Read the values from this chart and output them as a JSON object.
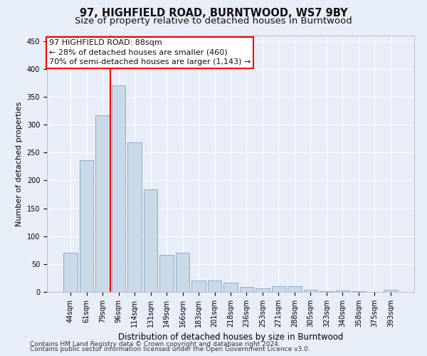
{
  "title": "97, HIGHFIELD ROAD, BURNTWOOD, WS7 9BY",
  "subtitle": "Size of property relative to detached houses in Burntwood",
  "xlabel": "Distribution of detached houses by size in Burntwood",
  "ylabel": "Number of detached properties",
  "categories": [
    "44sqm",
    "61sqm",
    "79sqm",
    "96sqm",
    "114sqm",
    "131sqm",
    "149sqm",
    "166sqm",
    "183sqm",
    "201sqm",
    "218sqm",
    "236sqm",
    "253sqm",
    "271sqm",
    "288sqm",
    "305sqm",
    "323sqm",
    "340sqm",
    "358sqm",
    "375sqm",
    "393sqm"
  ],
  "values": [
    70,
    237,
    317,
    370,
    268,
    184,
    67,
    70,
    21,
    21,
    17,
    9,
    7,
    10,
    10,
    4,
    1,
    2,
    1,
    0,
    4
  ],
  "bar_color": "#c9d9e8",
  "bar_edge_color": "#7ba7c7",
  "background_color": "#e8eef8",
  "grid_color": "#ffffff",
  "vline_x": 2.5,
  "vline_color": "red",
  "annotation_line1": "97 HIGHFIELD ROAD: 88sqm",
  "annotation_line2": "← 28% of detached houses are smaller (460)",
  "annotation_line3": "70% of semi-detached houses are larger (1,143) →",
  "annotation_box_color": "white",
  "annotation_box_edge": "red",
  "ylim": [
    0,
    460
  ],
  "yticks": [
    0,
    50,
    100,
    150,
    200,
    250,
    300,
    350,
    400,
    450
  ],
  "footer_line1": "Contains HM Land Registry data © Crown copyright and database right 2024.",
  "footer_line2": "Contains public sector information licensed under the Open Government Licence v3.0.",
  "title_fontsize": 10.5,
  "subtitle_fontsize": 9.5,
  "xlabel_fontsize": 8.5,
  "ylabel_fontsize": 8,
  "tick_fontsize": 7,
  "annotation_fontsize": 8,
  "footer_fontsize": 6.5
}
